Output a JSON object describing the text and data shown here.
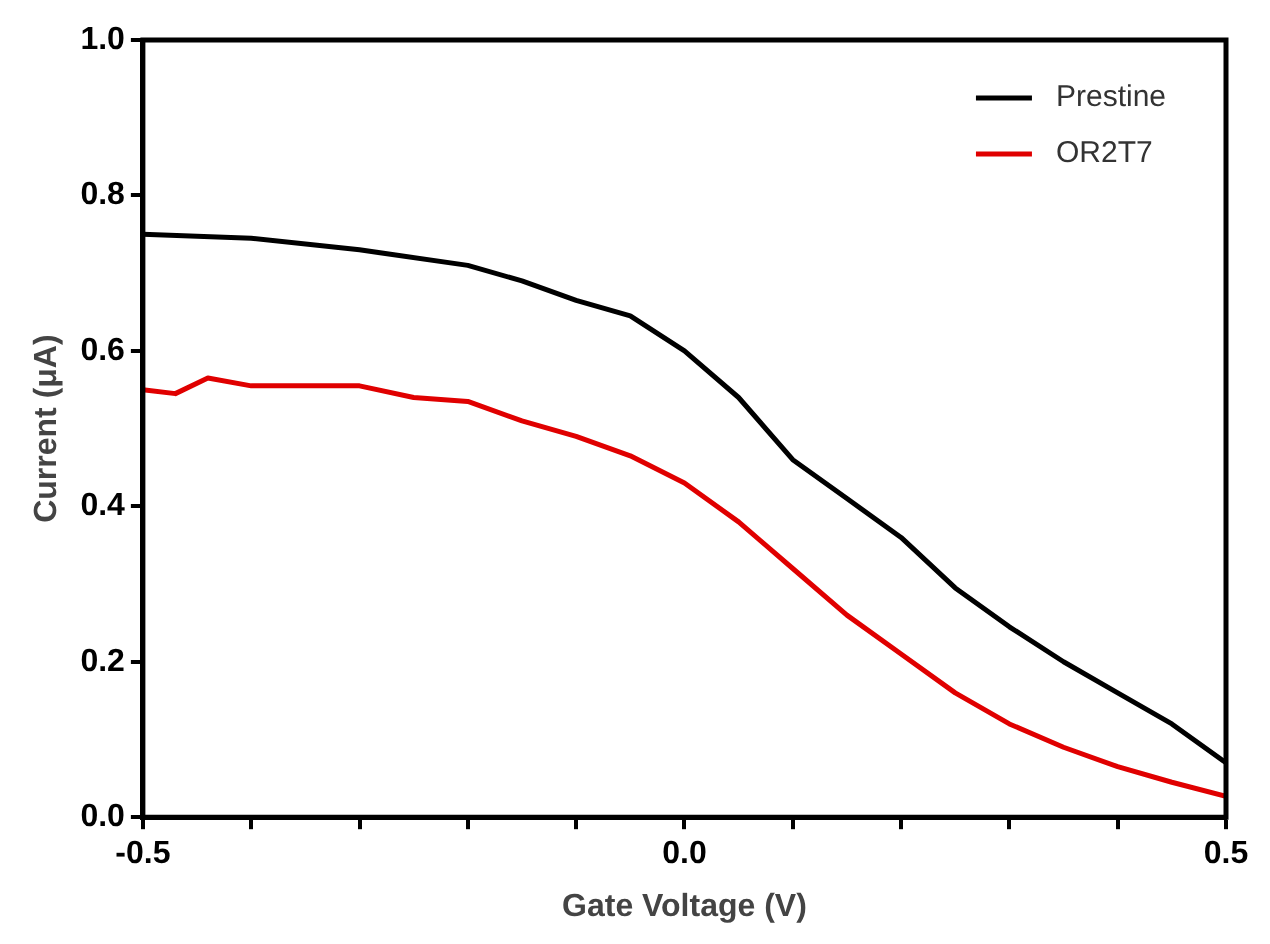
{
  "chart_data": {
    "type": "line",
    "xlabel": "Gate Voltage (V)",
    "ylabel": "Current (μA)",
    "xlim": [
      -0.5,
      0.5
    ],
    "xticks": [
      {
        "value": -0.5,
        "label": "-0.5"
      },
      {
        "value": -0.4,
        "label": null
      },
      {
        "value": -0.3,
        "label": null
      },
      {
        "value": -0.2,
        "label": null
      },
      {
        "value": -0.1,
        "label": null
      },
      {
        "value": 0,
        "label": "0.0"
      },
      {
        "value": 0.1,
        "label": null
      },
      {
        "value": 0.2,
        "label": null
      },
      {
        "value": 0.3,
        "label": null
      },
      {
        "value": 0.4,
        "label": null
      },
      {
        "value": 0.5,
        "label": "0.5"
      }
    ],
    "ylim": [
      0,
      1
    ],
    "yticks": [
      {
        "value": 0,
        "label": "0.0"
      },
      {
        "value": 0.2,
        "label": "0.2"
      },
      {
        "value": 0.4,
        "label": "0.4"
      },
      {
        "value": 0.6,
        "label": "0.6"
      },
      {
        "value": 0.8,
        "label": "0.8"
      },
      {
        "value": 1,
        "label": "1.0"
      }
    ],
    "grid": false,
    "legend": "top right",
    "marker": "none",
    "line_style": "solid",
    "series": [
      {
        "name": "Prestine",
        "color": "#000000",
        "x": [
          -0.5,
          -0.4,
          -0.3,
          -0.2,
          -0.15,
          -0.1,
          -0.05,
          0,
          0.05,
          0.1,
          0.15,
          0.2,
          0.25,
          0.3,
          0.35,
          0.4,
          0.45,
          0.5
        ],
        "values": [
          0.75,
          0.745,
          0.73,
          0.71,
          0.69,
          0.665,
          0.645,
          0.6,
          0.54,
          0.46,
          0.41,
          0.36,
          0.295,
          0.245,
          0.2,
          0.16,
          0.12,
          0.07
        ]
      },
      {
        "name": "OR2T7",
        "color": "#e00000",
        "x": [
          -0.5,
          -0.47,
          -0.44,
          -0.4,
          -0.3,
          -0.25,
          -0.2,
          -0.15,
          -0.1,
          -0.05,
          0,
          0.05,
          0.1,
          0.15,
          0.2,
          0.25,
          0.3,
          0.35,
          0.4,
          0.45,
          0.5
        ],
        "values": [
          0.55,
          0.545,
          0.565,
          0.555,
          0.555,
          0.54,
          0.535,
          0.51,
          0.49,
          0.465,
          0.43,
          0.38,
          0.32,
          0.26,
          0.21,
          0.16,
          0.12,
          0.09,
          0.065,
          0.045,
          0.027
        ]
      }
    ]
  }
}
